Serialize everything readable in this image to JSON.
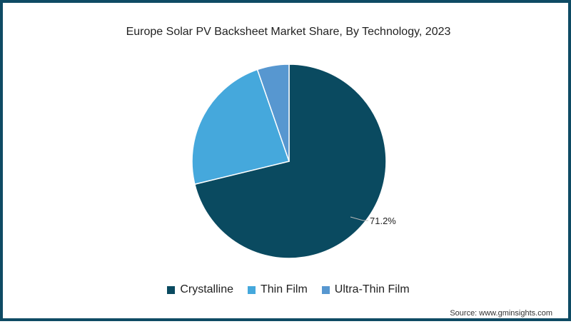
{
  "chart_data": {
    "type": "pie",
    "title": "Europe Solar PV Backsheet Market Share, By Technology, 2023",
    "categories": [
      "Crystalline",
      "Thin Film",
      "Ultra-Thin Film"
    ],
    "values": [
      71.2,
      23.5,
      5.3
    ],
    "colors": [
      "#0a4a60",
      "#45a8dc",
      "#5797d0"
    ],
    "data_labels": [
      {
        "category": "Crystalline",
        "text": "71.2%"
      }
    ],
    "legend_position": "bottom",
    "start_angle": "12 o'clock, clockwise"
  },
  "title": "Europe Solar PV Backsheet Market Share, By Technology, 2023",
  "legend": {
    "items": [
      {
        "label": "Crystalline",
        "color": "#0a4a60"
      },
      {
        "label": "Thin Film",
        "color": "#45a8dc"
      },
      {
        "label": "Ultra-Thin Film",
        "color": "#5797d0"
      }
    ]
  },
  "annotation": {
    "crystalline_label": "71.2%"
  },
  "source": "Source: www.gminsights.com",
  "colors": {
    "border": "#0e4b64"
  }
}
